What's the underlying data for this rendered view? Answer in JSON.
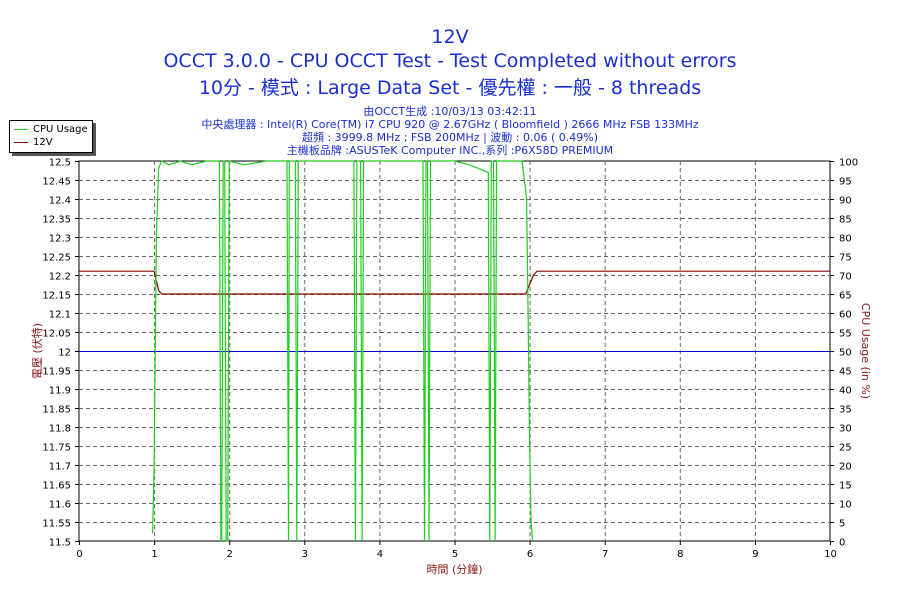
{
  "titles": {
    "line1": "12V",
    "line2": "OCCT 3.0.0 - CPU OCCT Test - Test Completed without errors",
    "line3": "10分 - 模式 : Large Data Set - 優先權 : 一般 - 8 threads"
  },
  "info": {
    "line1": "由OCCT生成 :10/03/13 03:42:11",
    "line2": "中央處理器 : Intel(R) Core(TM) i7 CPU 920 @ 2.67GHz ( Bloomfield ) 2666 MHz FSB 133MHz",
    "line3": "超頻 : 3999.8 MHz ; FSB 200MHz | 波動 : 0.06 ( 0.49%)",
    "line4": "主機板品牌 :ASUSTeK Computer INC.,系列 :P6X58D PREMIUM"
  },
  "colors": {
    "cpu_usage": "#22cc22",
    "voltage": "#8b0000",
    "reference": "#0000cc",
    "axis_label": "#8b1a1a",
    "grid": "#666666",
    "title": "#1a2fd0"
  },
  "chart_data": {
    "type": "line",
    "xlabel": "時間 (分鐘)",
    "ylabel_left": "電壓 (伏特)",
    "ylabel_right": "CPU Usage (in %)",
    "xlim": [
      0,
      10
    ],
    "ylim_left": [
      11.5,
      12.5
    ],
    "ylim_right": [
      0,
      100
    ],
    "x_ticks": [
      "0",
      "1",
      "2",
      "3",
      "4",
      "5",
      "6",
      "7",
      "8",
      "9",
      "10"
    ],
    "y_left_ticks": [
      "11.5",
      "11.55",
      "11.6",
      "11.65",
      "11.7",
      "11.75",
      "11.8",
      "11.85",
      "11.9",
      "11.95",
      "12",
      "12.05",
      "12.1",
      "12.15",
      "12.2",
      "12.25",
      "12.3",
      "12.35",
      "12.4",
      "12.45",
      "12.5"
    ],
    "y_right_ticks": [
      "0",
      "5",
      "10",
      "15",
      "20",
      "25",
      "30",
      "35",
      "40",
      "45",
      "50",
      "55",
      "60",
      "65",
      "70",
      "75",
      "80",
      "85",
      "90",
      "95",
      "100"
    ],
    "grid": true,
    "legend_position": "top-left",
    "reference_line": 12.0,
    "series": [
      {
        "name": "CPU Usage",
        "axis": "right",
        "x": [
          0.98,
          1.0,
          1.03,
          1.06,
          1.1,
          1.2,
          1.35,
          1.5,
          1.7,
          1.87,
          1.89,
          1.9,
          1.92,
          1.94,
          1.96,
          1.98,
          2.0,
          2.2,
          2.5,
          2.77,
          2.79,
          2.8,
          2.88,
          2.9,
          2.92,
          3.0,
          3.3,
          3.66,
          3.68,
          3.7,
          3.75,
          3.77,
          3.79,
          3.9,
          4.2,
          4.58,
          4.6,
          4.62,
          4.64,
          4.66,
          4.68,
          4.8,
          5.0,
          5.2,
          5.45,
          5.47,
          5.49,
          5.52,
          5.54,
          5.56,
          5.7,
          5.9,
          5.96,
          5.98,
          6.0,
          6.02,
          6.04
        ],
        "y": [
          2,
          20,
          80,
          98,
          100,
          99,
          100,
          99,
          100,
          100,
          0,
          0,
          100,
          100,
          0,
          0,
          100,
          99,
          100,
          100,
          0,
          100,
          100,
          0,
          100,
          100,
          100,
          100,
          0,
          100,
          100,
          0,
          100,
          100,
          100,
          100,
          0,
          100,
          100,
          0,
          100,
          100,
          100,
          99,
          97,
          0,
          100,
          100,
          0,
          100,
          100,
          100,
          90,
          60,
          25,
          5,
          0
        ]
      },
      {
        "name": "12V",
        "axis": "left",
        "x": [
          0,
          1.0,
          1.06,
          1.1,
          2.0,
          3.0,
          4.0,
          5.0,
          5.95,
          6.05,
          6.1,
          7.0,
          8.0,
          9.0,
          10.0
        ],
        "y": [
          12.21,
          12.21,
          12.16,
          12.15,
          12.15,
          12.15,
          12.15,
          12.15,
          12.15,
          12.2,
          12.21,
          12.21,
          12.21,
          12.21,
          12.21
        ]
      }
    ]
  }
}
